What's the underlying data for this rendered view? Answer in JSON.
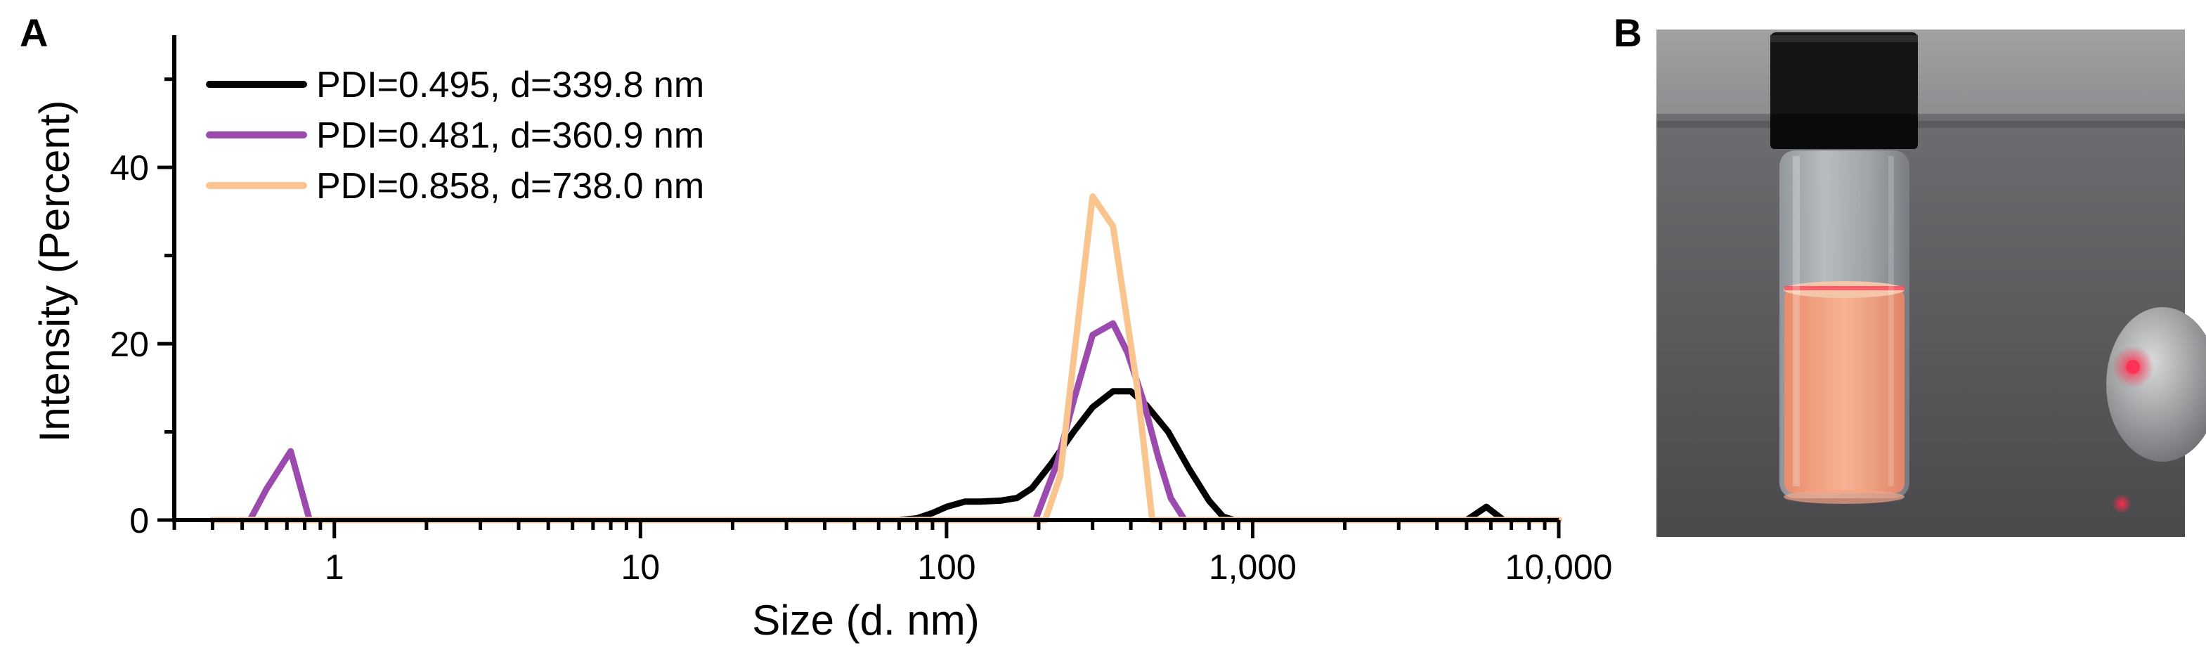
{
  "panels": {
    "a_label": "A",
    "b_label": "B"
  },
  "chart_data": {
    "type": "line",
    "xlabel": "Size (d. nm)",
    "ylabel": "Intensity (Percent)",
    "xscale": "log",
    "xlim": [
      0.3,
      10000
    ],
    "ylim": [
      0,
      55
    ],
    "x_ticks": [
      {
        "value": 1,
        "label": "1"
      },
      {
        "value": 10,
        "label": "10"
      },
      {
        "value": 100,
        "label": "100"
      },
      {
        "value": 1000,
        "label": "1,000"
      },
      {
        "value": 10000,
        "label": "10,000"
      }
    ],
    "y_ticks": [
      {
        "value": 0,
        "label": "0"
      },
      {
        "value": 20,
        "label": "20"
      },
      {
        "value": 40,
        "label": "40"
      }
    ],
    "legend_position": "top-left",
    "series": [
      {
        "name": "PDI=0.495, d=339.8 nm",
        "color": "#000000",
        "points": [
          [
            0.4,
            0
          ],
          [
            70,
            0
          ],
          [
            80,
            0.2
          ],
          [
            90,
            0.8
          ],
          [
            100,
            1.5
          ],
          [
            115,
            2.1
          ],
          [
            130,
            2.1
          ],
          [
            150,
            2.2
          ],
          [
            170,
            2.5
          ],
          [
            190,
            3.6
          ],
          [
            220,
            6.4
          ],
          [
            260,
            10
          ],
          [
            300,
            12.8
          ],
          [
            350,
            14.6
          ],
          [
            400,
            14.6
          ],
          [
            450,
            13
          ],
          [
            530,
            10
          ],
          [
            620,
            5.8
          ],
          [
            720,
            2.2
          ],
          [
            800,
            0.4
          ],
          [
            870,
            0
          ],
          [
            5000,
            0
          ],
          [
            5800,
            1.5
          ],
          [
            6600,
            0
          ],
          [
            10000,
            0
          ]
        ]
      },
      {
        "name": "PDI=0.481, d=360.9 nm",
        "color": "#9B4BAE",
        "points": [
          [
            0.4,
            0
          ],
          [
            0.53,
            0
          ],
          [
            0.6,
            3.5
          ],
          [
            0.72,
            7.8
          ],
          [
            0.83,
            0
          ],
          [
            195,
            0
          ],
          [
            230,
            6.5
          ],
          [
            260,
            13.5
          ],
          [
            300,
            21
          ],
          [
            350,
            22.3
          ],
          [
            390,
            19
          ],
          [
            440,
            13.5
          ],
          [
            490,
            7.3
          ],
          [
            540,
            2.5
          ],
          [
            600,
            0
          ],
          [
            10000,
            0
          ]
        ]
      },
      {
        "name": "PDI=0.858, d=738.0 nm",
        "color": "#F9C48D",
        "points": [
          [
            0.4,
            0
          ],
          [
            210,
            0
          ],
          [
            235,
            5
          ],
          [
            300,
            36.7
          ],
          [
            350,
            33.3
          ],
          [
            420,
            15
          ],
          [
            470,
            0
          ],
          [
            10000,
            0
          ]
        ]
      }
    ]
  },
  "photo": {
    "description_icon": "vial-photo",
    "colors": {
      "background": "#5b5a5c",
      "cap": "#141414",
      "liquid": "#f0a07e",
      "laser": "#ff2b4a"
    }
  }
}
